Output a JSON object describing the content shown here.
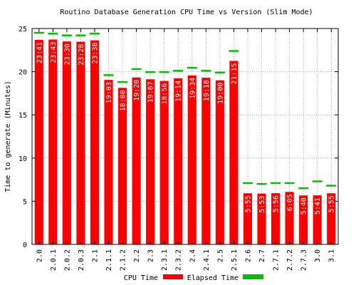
{
  "chart_data": {
    "type": "bar",
    "title": "Routino Database Generation CPU Time vs Version (Slim Mode)",
    "ylabel": "Time to generate (Minutes)",
    "xlabel": "",
    "ylim": [
      0,
      25
    ],
    "yticks": [
      0,
      5,
      10,
      15,
      20,
      25
    ],
    "grid": true,
    "legend_position": "bottom-center",
    "categories": [
      "2.0",
      "2.0.1",
      "2.0.2",
      "2.0.3",
      "2.1",
      "2.1.1",
      "2.1.2",
      "2.2",
      "2.3",
      "2.3.1",
      "2.3.2",
      "2.4",
      "2.4.1",
      "2.5",
      "2.5.1",
      "2.6",
      "2.7",
      "2.7.1",
      "2.7.2",
      "2.7.3",
      "3.0",
      "3.1"
    ],
    "series": [
      {
        "name": "CPU Time",
        "color": "#ff0000",
        "style": "bar",
        "values": [
          23.68,
          23.72,
          23.5,
          23.47,
          23.63,
          19.05,
          18.13,
          19.33,
          19.12,
          18.93,
          19.23,
          19.57,
          19.3,
          19.0,
          21.25,
          5.92,
          5.88,
          5.93,
          6.08,
          5.67,
          5.68,
          5.92
        ],
        "labels": [
          "23:41",
          "23:43",
          "23:30",
          "23:28",
          "23:38",
          "19:03",
          "18:08",
          "19:20",
          "19:07",
          "18:56",
          "19:14",
          "19:34",
          "19:18",
          "19:00",
          "21:15",
          "5:55",
          "5:53",
          "5:56",
          "6:05",
          "5:40",
          "5:41",
          "5:55"
        ]
      },
      {
        "name": "Elapsed Time",
        "color": "#00c000",
        "style": "marker",
        "values": [
          24.5,
          24.4,
          24.2,
          24.2,
          24.4,
          19.6,
          18.8,
          20.3,
          19.95,
          19.95,
          20.1,
          20.45,
          20.1,
          19.9,
          22.4,
          7.1,
          7.0,
          7.1,
          7.1,
          6.5,
          7.3,
          6.8
        ]
      }
    ]
  }
}
